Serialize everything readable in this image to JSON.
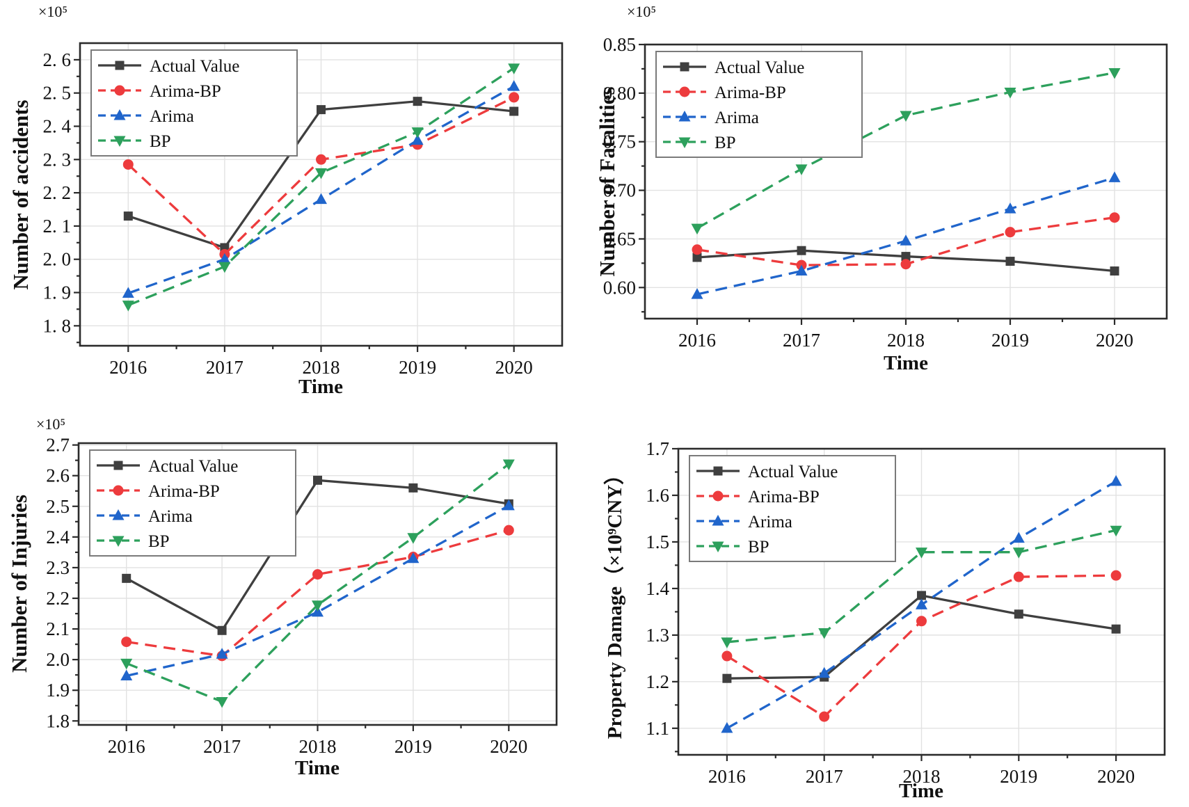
{
  "figure": {
    "background": "#ffffff",
    "axis_color": "#2b2b2b",
    "grid_color": "#e2e2e2",
    "legend_border_color": "#7a7a7a"
  },
  "series_defs": [
    {
      "key": "actual",
      "label": "Actual Value",
      "color": "#3f3f3f",
      "marker": "square",
      "linestyle": "solid"
    },
    {
      "key": "arima_bp",
      "label": "Arima-BP",
      "color": "#ed3b3d",
      "marker": "circle",
      "linestyle": "dashed"
    },
    {
      "key": "arima",
      "label": "Arima",
      "color": "#2065cb",
      "marker": "triangle-up",
      "linestyle": "dashed"
    },
    {
      "key": "bp",
      "label": "BP",
      "color": "#2da05c",
      "marker": "triangle-down",
      "linestyle": "dashed"
    }
  ],
  "chart_data": [
    {
      "id": "accidents",
      "type": "line",
      "ylabel": "Number of accidents",
      "xlabel": "Time",
      "exponent_label": "×10⁵",
      "x": [
        2016,
        2017,
        2018,
        2019,
        2020
      ],
      "xlim": [
        2015.5,
        2020.5
      ],
      "ylim": [
        1.74,
        2.65
      ],
      "yticks": [
        1.8,
        1.9,
        2.0,
        2.1,
        2.2,
        2.3,
        2.4,
        2.5,
        2.6
      ],
      "ytick_labels": [
        "1. 8",
        "1. 9",
        "2. 0",
        "2. 1",
        "2. 2",
        "2. 3",
        "2. 4",
        "2. 5",
        "2. 6"
      ],
      "grid": true,
      "legend_position": "top-left",
      "series": [
        {
          "key": "actual",
          "name": "Actual Value",
          "values": [
            2.13,
            2.035,
            2.45,
            2.475,
            2.445
          ]
        },
        {
          "key": "arima_bp",
          "name": "Arima-BP",
          "values": [
            2.285,
            2.015,
            2.3,
            2.345,
            2.487
          ]
        },
        {
          "key": "arima",
          "name": "Arima",
          "values": [
            1.898,
            2.0,
            2.18,
            2.358,
            2.52
          ]
        },
        {
          "key": "bp",
          "name": "BP",
          "values": [
            1.862,
            1.978,
            2.26,
            2.383,
            2.575
          ]
        }
      ]
    },
    {
      "id": "fatalities",
      "type": "line",
      "ylabel": "Number of Fatalities",
      "xlabel": "Time",
      "exponent_label": "×10⁵",
      "x": [
        2016,
        2017,
        2018,
        2019,
        2020
      ],
      "xlim": [
        2015.5,
        2020.5
      ],
      "ylim": [
        0.568,
        0.85
      ],
      "yticks": [
        0.6,
        0.65,
        0.7,
        0.75,
        0.8,
        0.85
      ],
      "ytick_labels": [
        "0.60",
        "0.65",
        "0.70",
        "0.75",
        "0.80",
        "0.85"
      ],
      "grid": true,
      "legend_position": "top-left",
      "series": [
        {
          "key": "actual",
          "name": "Actual Value",
          "values": [
            0.631,
            0.638,
            0.632,
            0.627,
            0.617
          ]
        },
        {
          "key": "arima_bp",
          "name": "Arima-BP",
          "values": [
            0.639,
            0.623,
            0.624,
            0.657,
            0.672
          ]
        },
        {
          "key": "arima",
          "name": "Arima",
          "values": [
            0.593,
            0.617,
            0.648,
            0.681,
            0.713
          ]
        },
        {
          "key": "bp",
          "name": "BP",
          "values": [
            0.661,
            0.722,
            0.777,
            0.801,
            0.821
          ]
        }
      ]
    },
    {
      "id": "injuries",
      "type": "line",
      "ylabel": "Number of Injuries",
      "xlabel": "Time",
      "exponent_label": "×10⁵",
      "x": [
        2016,
        2017,
        2018,
        2019,
        2020
      ],
      "xlim": [
        2015.5,
        2020.5
      ],
      "ylim": [
        1.787,
        2.706
      ],
      "yticks": [
        1.8,
        1.9,
        2.0,
        2.1,
        2.2,
        2.3,
        2.4,
        2.5,
        2.6,
        2.7
      ],
      "ytick_labels": [
        "1.8",
        "1.9",
        "2.0",
        "2.1",
        "2.2",
        "2.3",
        "2.4",
        "2.5",
        "2.6",
        "2.7"
      ],
      "grid": true,
      "legend_position": "top-left",
      "series": [
        {
          "key": "actual",
          "name": "Actual Value",
          "values": [
            2.265,
            2.095,
            2.585,
            2.56,
            2.508
          ]
        },
        {
          "key": "arima_bp",
          "name": "Arima-BP",
          "values": [
            2.058,
            2.012,
            2.278,
            2.335,
            2.422
          ]
        },
        {
          "key": "arima",
          "name": "Arima",
          "values": [
            1.947,
            2.018,
            2.155,
            2.33,
            2.502
          ]
        },
        {
          "key": "bp",
          "name": "BP",
          "values": [
            1.988,
            1.863,
            2.178,
            2.398,
            2.638
          ]
        }
      ]
    },
    {
      "id": "property",
      "type": "line",
      "ylabel": "Property Damage（×10⁹CNY）",
      "xlabel": "Time",
      "x": [
        2016,
        2017,
        2018,
        2019,
        2020
      ],
      "xlim": [
        2015.5,
        2020.5
      ],
      "ylim": [
        1.043,
        1.7
      ],
      "yticks": [
        1.1,
        1.2,
        1.3,
        1.4,
        1.5,
        1.6,
        1.7
      ],
      "ytick_labels": [
        "1.1",
        "1.2",
        "1.3",
        "1.4",
        "1.5",
        "1.6",
        "1.7"
      ],
      "grid": true,
      "legend_position": "top-left",
      "series": [
        {
          "key": "actual",
          "name": "Actual Value",
          "values": [
            1.207,
            1.21,
            1.385,
            1.345,
            1.313
          ]
        },
        {
          "key": "arima_bp",
          "name": "Arima-BP",
          "values": [
            1.255,
            1.125,
            1.33,
            1.425,
            1.428
          ]
        },
        {
          "key": "arima",
          "name": "Arima",
          "values": [
            1.1,
            1.218,
            1.365,
            1.508,
            1.63
          ]
        },
        {
          "key": "bp",
          "name": "BP",
          "values": [
            1.285,
            1.305,
            1.478,
            1.478,
            1.525
          ]
        }
      ]
    }
  ]
}
